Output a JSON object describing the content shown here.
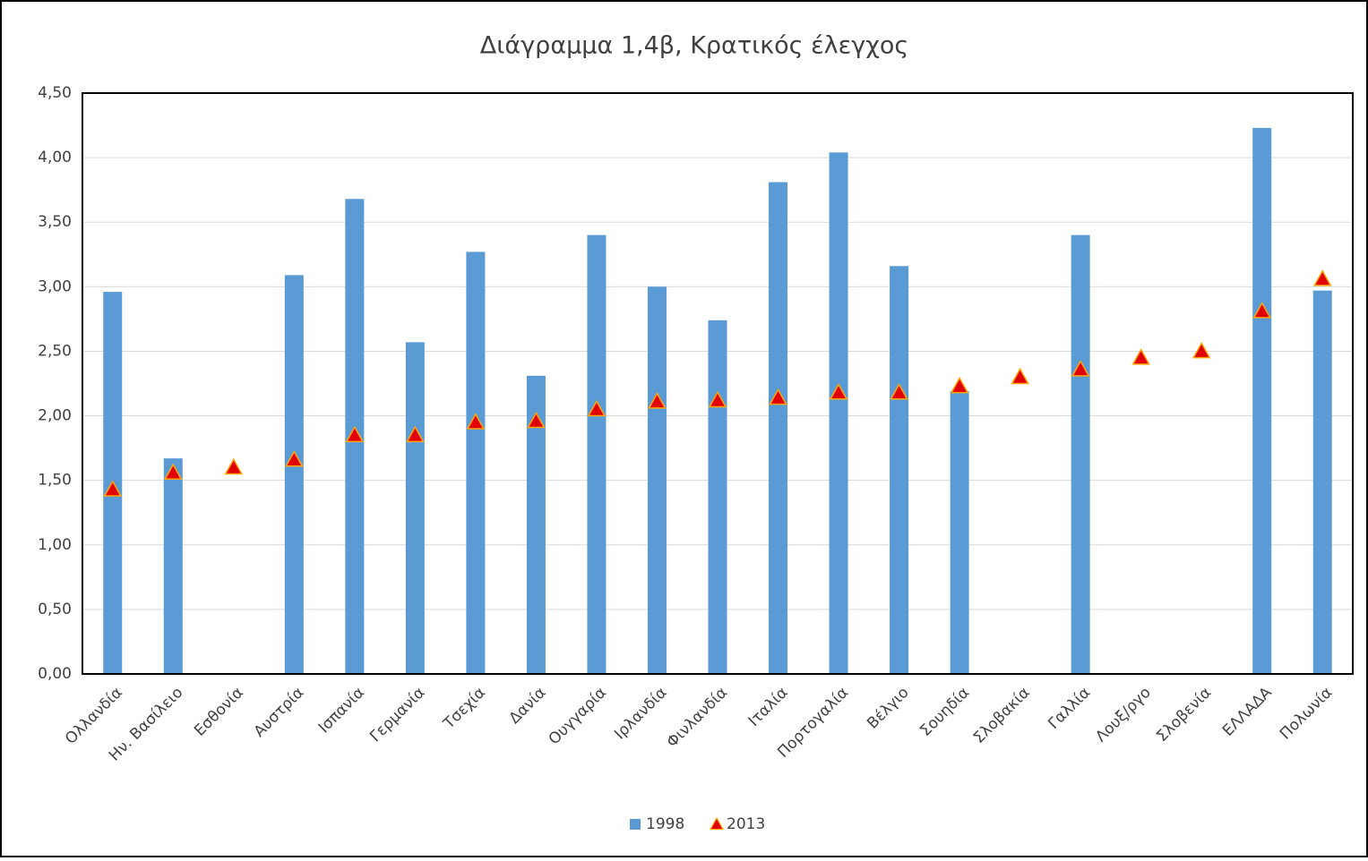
{
  "chart_data": {
    "type": "bar_marker",
    "title": "Διάγραμμα 1,4β, Κρατικός έλεγχος",
    "categories": [
      "Ολλανδία",
      "Ην. Βασίλειο",
      "Εσθονία",
      "Αυστρία",
      "Ισπανία",
      "Γερμανία",
      "Τσεχία",
      "Δανία",
      "Ουγγαρία",
      "Ιρλανδία",
      "Φινλανδία",
      "Ιταλία",
      "Πορτογαλία",
      "Βέλγιο",
      "Σουηδία",
      "Σλοβακία",
      "Γαλλία",
      "Λουξ/ργο",
      "Σλοβενία",
      "ΕΛΛΑΔΑ",
      "Πολωνία"
    ],
    "series": [
      {
        "name": "1998",
        "color": "#5b9bd5",
        "mark": "bar",
        "values": [
          2.96,
          1.67,
          null,
          3.09,
          3.68,
          2.57,
          3.27,
          2.31,
          3.4,
          3.0,
          2.74,
          3.81,
          4.04,
          3.16,
          2.19,
          null,
          3.4,
          null,
          null,
          4.23,
          2.97
        ]
      },
      {
        "name": "2013",
        "color": "#e00000",
        "edge": "#ffa500",
        "mark": "triangle",
        "values": [
          1.43,
          1.56,
          1.6,
          1.66,
          1.85,
          1.85,
          1.95,
          1.96,
          2.05,
          2.11,
          2.12,
          2.14,
          2.18,
          2.18,
          2.23,
          2.3,
          2.36,
          2.45,
          2.5,
          2.81,
          3.06
        ]
      }
    ],
    "ylim": [
      0,
      4.5
    ],
    "yticks": [
      {
        "value": 0,
        "label": "0,00"
      },
      {
        "value": 0.5,
        "label": "0,50"
      },
      {
        "value": 1,
        "label": "1,00"
      },
      {
        "value": 1.5,
        "label": "1,50"
      },
      {
        "value": 2,
        "label": "2,00"
      },
      {
        "value": 2.5,
        "label": "2,50"
      },
      {
        "value": 3,
        "label": "3,00"
      },
      {
        "value": 3.5,
        "label": "3,50"
      },
      {
        "value": 4,
        "label": "4,00"
      },
      {
        "value": 4.5,
        "label": "4,50"
      }
    ],
    "grid": true,
    "legend": "bottom"
  }
}
